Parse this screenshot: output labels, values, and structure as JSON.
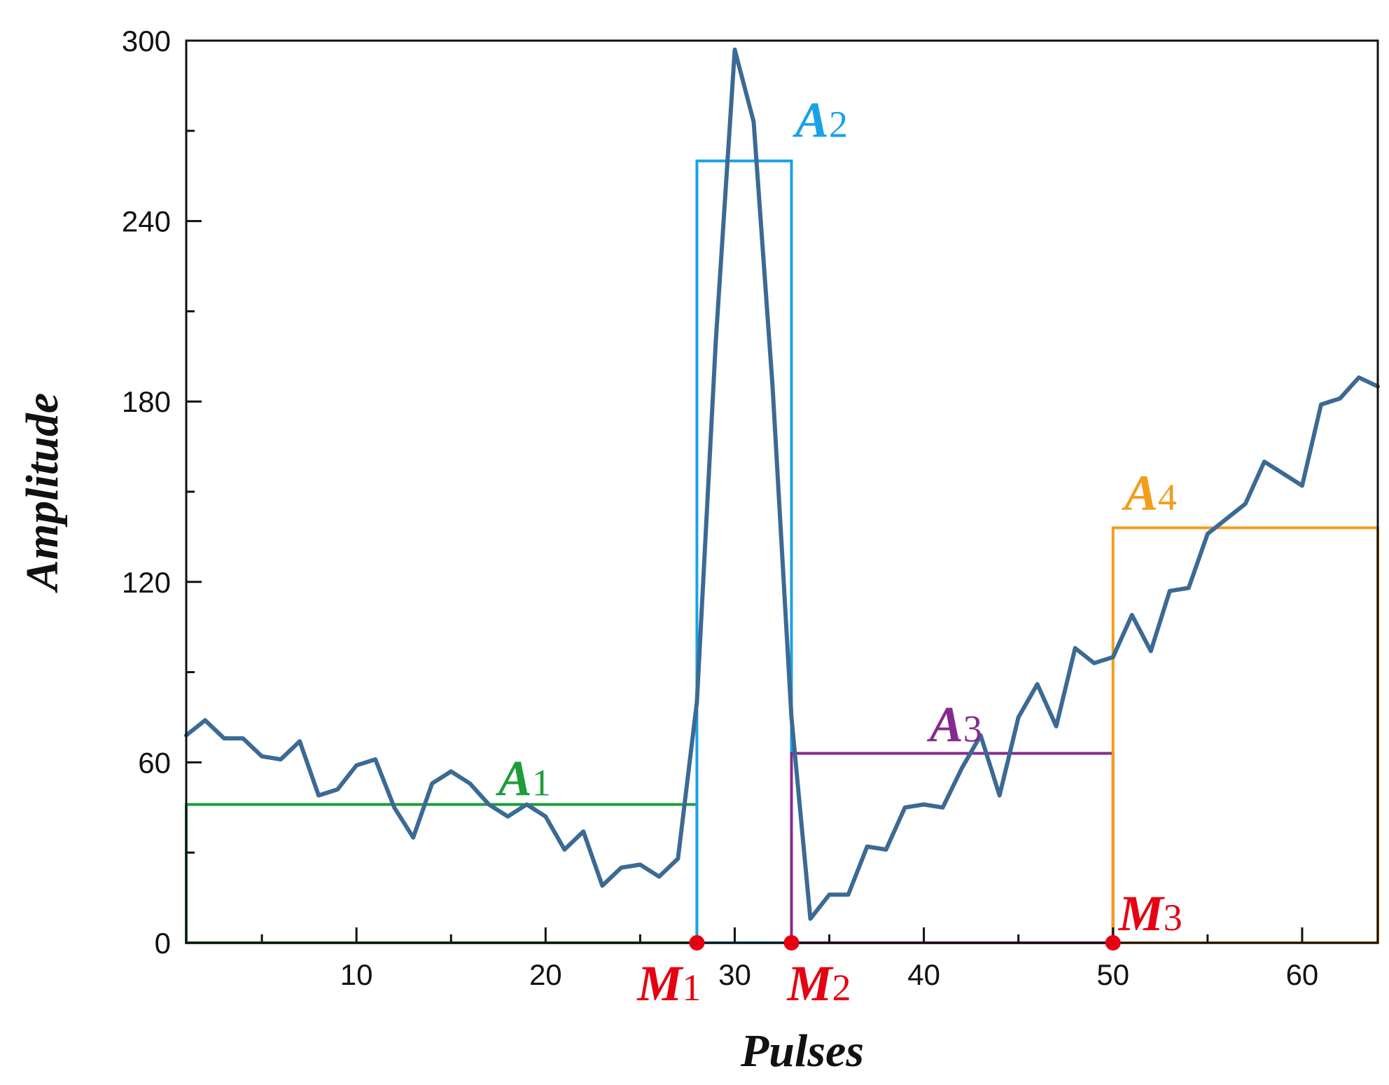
{
  "chart_data": {
    "type": "line",
    "xlabel": "Pulses",
    "ylabel": "Amplitude",
    "xlim": [
      1,
      64
    ],
    "ylim": [
      0,
      300
    ],
    "xticks": [
      10,
      20,
      30,
      40,
      50,
      60
    ],
    "yticks": [
      0,
      60,
      120,
      180,
      240,
      300
    ],
    "grid": false,
    "line_color": "#3b6a94",
    "x": [
      1,
      2,
      3,
      4,
      5,
      6,
      7,
      8,
      9,
      10,
      11,
      12,
      13,
      14,
      15,
      16,
      17,
      18,
      19,
      20,
      21,
      22,
      23,
      24,
      25,
      26,
      27,
      28,
      29,
      30,
      31,
      32,
      33,
      34,
      35,
      36,
      37,
      38,
      39,
      40,
      41,
      42,
      43,
      44,
      45,
      46,
      47,
      48,
      49,
      50,
      51,
      52,
      53,
      54,
      55,
      56,
      57,
      58,
      59,
      60,
      61,
      62,
      63,
      64
    ],
    "y": [
      69,
      74,
      68,
      68,
      62,
      61,
      67,
      49,
      51,
      59,
      61,
      45,
      35,
      53,
      57,
      53,
      46,
      42,
      46,
      42,
      31,
      37,
      19,
      25,
      26,
      22,
      28,
      80,
      200,
      297,
      273,
      185,
      75,
      8,
      16,
      16,
      32,
      31,
      45,
      46,
      45,
      58,
      69,
      49,
      75,
      86,
      72,
      98,
      93,
      95,
      109,
      97,
      117,
      118,
      136,
      141,
      146,
      160,
      156,
      152,
      179,
      181,
      188,
      185
    ],
    "boxes": [
      {
        "label": "A",
        "sub": "1",
        "x0": 1,
        "x1": 28,
        "y1": 46,
        "color": "#1f9c3a"
      },
      {
        "label": "A",
        "sub": "2",
        "x0": 28,
        "x1": 33,
        "y1": 260,
        "color": "#1aa2e6"
      },
      {
        "label": "A",
        "sub": "3",
        "x0": 33,
        "x1": 50,
        "y1": 63,
        "color": "#862a8c"
      },
      {
        "label": "A",
        "sub": "4",
        "x0": 50,
        "x1": 64,
        "y1": 138,
        "color": "#f29e1b"
      }
    ],
    "markers": [
      {
        "label": "M",
        "sub": "1",
        "x": 28,
        "y": 0,
        "color": "#e60012"
      },
      {
        "label": "M",
        "sub": "2",
        "x": 33,
        "y": 0,
        "color": "#e60012"
      },
      {
        "label": "M",
        "sub": "3",
        "x": 50,
        "y": 0,
        "color": "#e60012"
      }
    ]
  }
}
